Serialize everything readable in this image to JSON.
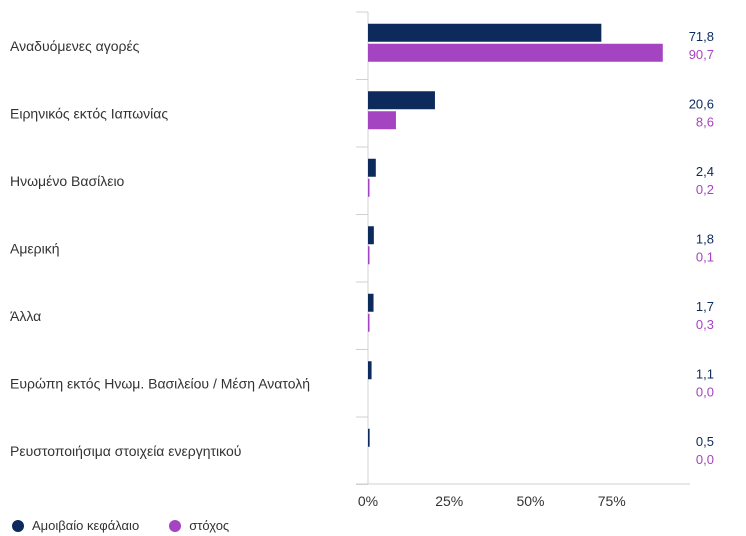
{
  "chart_data": {
    "type": "bar",
    "orientation": "horizontal",
    "categories": [
      "Αναδυόμενες αγορές",
      "Ειρηνικός εκτός Ιαπωνίας",
      "Ηνωμένο Βασίλειο",
      "Αμερική",
      "Άλλα",
      "Ευρώπη εκτός Ηνωμ. Βασιλείου / Μέση Ανατολή",
      "Ρευστοποιήσιμα στοιχεία ενεργητικού"
    ],
    "series": [
      {
        "name": "Αμοιβαίο κεφάλαιο",
        "color": "#0c2a5c",
        "values": [
          71.8,
          20.6,
          2.4,
          1.8,
          1.7,
          1.1,
          0.5
        ],
        "labels": [
          "71,8",
          "20,6",
          "2,4",
          "1,8",
          "1,7",
          "1,1",
          "0,5"
        ]
      },
      {
        "name": "στόχος",
        "color": "#a444c0",
        "values": [
          90.7,
          8.6,
          0.2,
          0.1,
          0.3,
          0.0,
          0.0
        ],
        "labels": [
          "90,7",
          "8,6",
          "0,2",
          "0,1",
          "0,3",
          "0,0",
          "0,0"
        ]
      }
    ],
    "xticks": [
      "0%",
      "25%",
      "50%",
      "75%"
    ],
    "xlim": [
      0,
      100
    ],
    "legend_position": "bottom-left",
    "grid": false
  }
}
